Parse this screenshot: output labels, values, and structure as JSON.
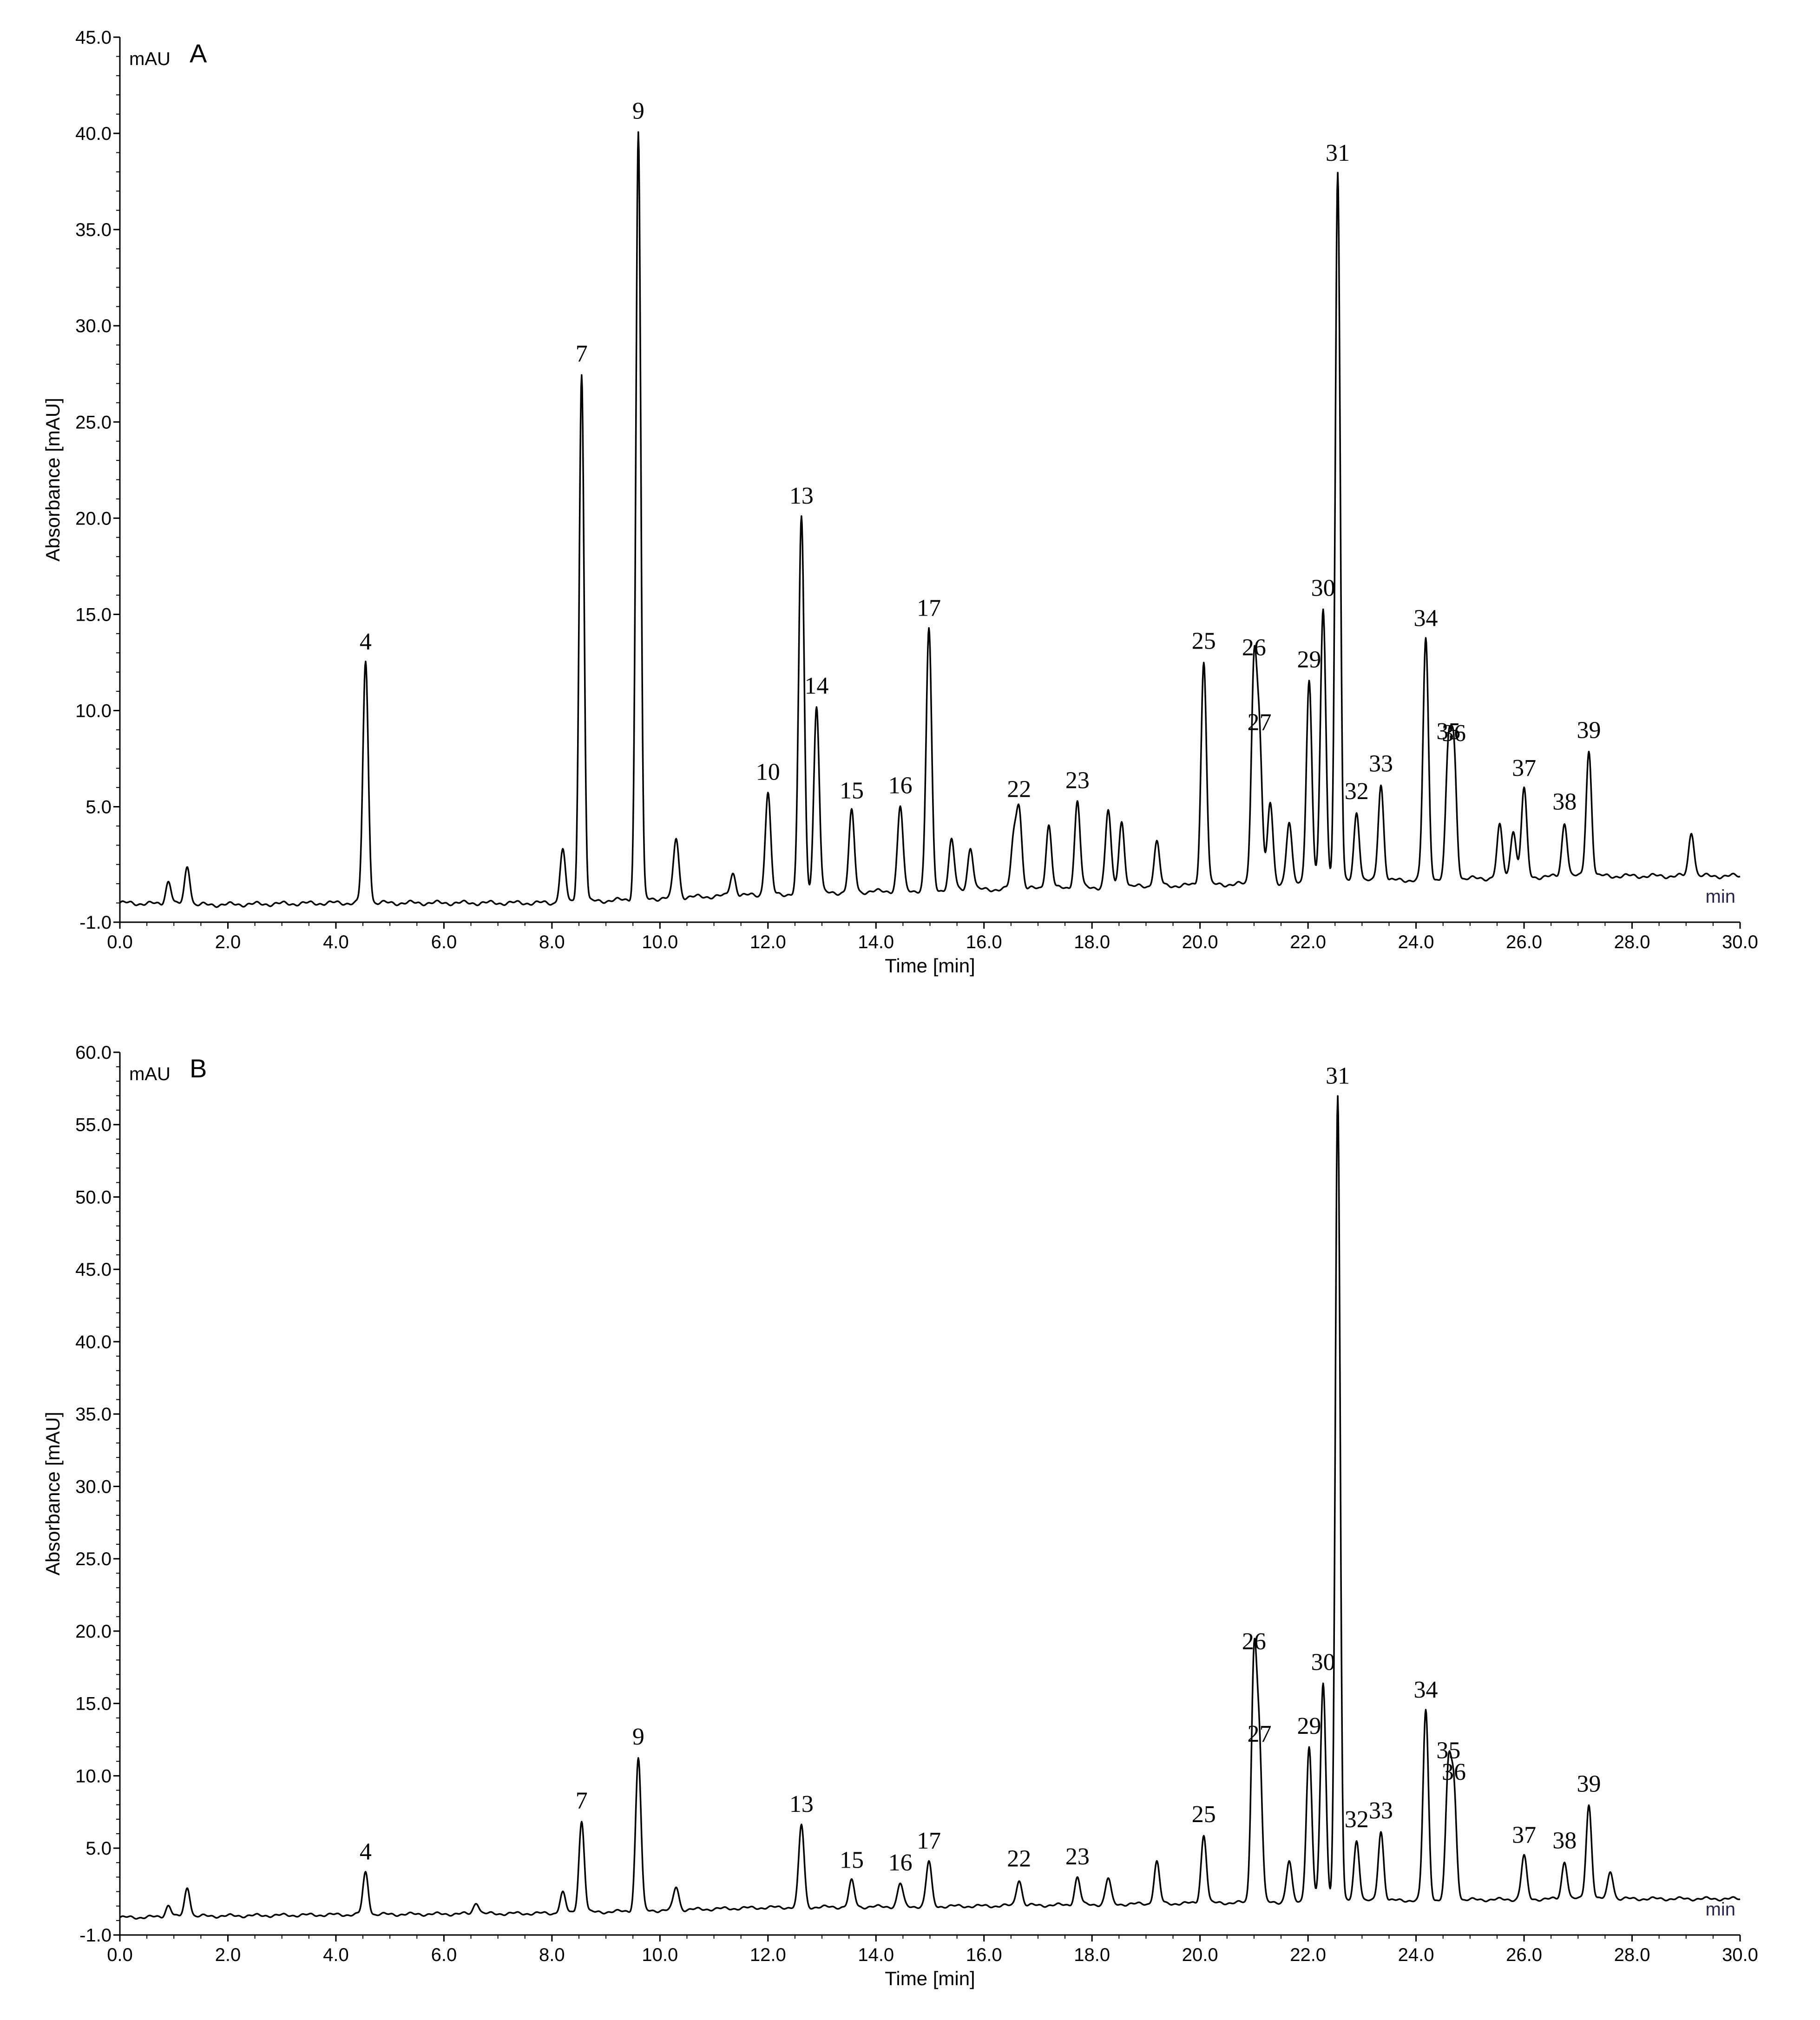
{
  "chart_data": [
    {
      "type": "line",
      "panel_label": "A",
      "unit_label": "mAU",
      "xlabel": "Time [min]",
      "ylabel": "Absorbance [mAU]",
      "x_end_label": "min",
      "xlim": [
        0,
        30
      ],
      "ylim": [
        -1,
        45
      ],
      "xticks": [
        0,
        2,
        4,
        6,
        8,
        10,
        12,
        14,
        16,
        18,
        20,
        22,
        24,
        26,
        28,
        30
      ],
      "xtick_labels": [
        "0.0",
        "2.0",
        "4.0",
        "6.0",
        "8.0",
        "10.0",
        "12.0",
        "14.0",
        "16.0",
        "18.0",
        "20.0",
        "22.0",
        "24.0",
        "26.0",
        "28.0",
        "30.0"
      ],
      "yticks": [
        -1,
        5,
        10,
        15,
        20,
        25,
        30,
        35,
        40,
        45
      ],
      "ytick_labels": [
        "-1.0",
        "5.0",
        "10.0",
        "15.0",
        "20.0",
        "25.0",
        "30.0",
        "35.0",
        "40.0",
        "45.0"
      ],
      "baseline": [
        [
          0,
          0.0
        ],
        [
          1.5,
          -0.1
        ],
        [
          4.0,
          0.0
        ],
        [
          8.0,
          0.0
        ],
        [
          10.5,
          0.3
        ],
        [
          14.0,
          0.6
        ],
        [
          18.0,
          0.8
        ],
        [
          21.0,
          1.0
        ],
        [
          24.0,
          1.2
        ],
        [
          27.0,
          1.4
        ],
        [
          30.0,
          1.4
        ]
      ],
      "peaks": [
        {
          "label": "",
          "time": 0.9,
          "height": 1.2
        },
        {
          "label": "",
          "time": 1.25,
          "height": 2.0
        },
        {
          "label": "4",
          "time": 4.55,
          "height": 12.5
        },
        {
          "label": "",
          "time": 8.2,
          "height": 2.7
        },
        {
          "label": "7",
          "time": 8.55,
          "height": 27.4
        },
        {
          "label": "9",
          "time": 9.6,
          "height": 39.9
        },
        {
          "label": "",
          "time": 10.3,
          "height": 3.1
        },
        {
          "label": "",
          "time": 11.35,
          "height": 1.2
        },
        {
          "label": "10",
          "time": 12.0,
          "height": 5.3
        },
        {
          "label": "13",
          "time": 12.62,
          "height": 19.6
        },
        {
          "label": "14",
          "time": 12.9,
          "height": 9.7
        },
        {
          "label": "15",
          "time": 13.55,
          "height": 4.2
        },
        {
          "label": "16",
          "time": 14.45,
          "height": 4.4
        },
        {
          "label": "17",
          "time": 14.98,
          "height": 13.6
        },
        {
          "label": "",
          "time": 15.4,
          "height": 2.6
        },
        {
          "label": "",
          "time": 15.75,
          "height": 2.2
        },
        {
          "label": "",
          "time": 16.55,
          "height": 2.5
        },
        {
          "label": "22",
          "time": 16.65,
          "height": 4.1
        },
        {
          "label": "",
          "time": 17.2,
          "height": 3.3
        },
        {
          "label": "23",
          "time": 17.73,
          "height": 4.5
        },
        {
          "label": "",
          "time": 18.3,
          "height": 4.0
        },
        {
          "label": "",
          "time": 18.55,
          "height": 3.4
        },
        {
          "label": "",
          "time": 19.2,
          "height": 2.3
        },
        {
          "label": "25",
          "time": 20.07,
          "height": 11.6
        },
        {
          "label": "26",
          "time": 21.0,
          "height": 11.2
        },
        {
          "label": "27",
          "time": 21.1,
          "height": 7.3
        },
        {
          "label": "",
          "time": 21.3,
          "height": 4.2
        },
        {
          "label": "",
          "time": 21.65,
          "height": 3.1
        },
        {
          "label": "29",
          "time": 22.02,
          "height": 10.5
        },
        {
          "label": "30",
          "time": 22.28,
          "height": 14.2
        },
        {
          "label": "31",
          "time": 22.55,
          "height": 36.8
        },
        {
          "label": "32",
          "time": 22.9,
          "height": 3.6
        },
        {
          "label": "33",
          "time": 23.35,
          "height": 5.0
        },
        {
          "label": "34",
          "time": 24.18,
          "height": 12.5
        },
        {
          "label": "35",
          "time": 24.6,
          "height": 6.6
        },
        {
          "label": "36",
          "time": 24.7,
          "height": 6.5
        },
        {
          "label": "",
          "time": 25.55,
          "height": 2.7
        },
        {
          "label": "",
          "time": 25.8,
          "height": 2.5
        },
        {
          "label": "37",
          "time": 26.0,
          "height": 4.6
        },
        {
          "label": "38",
          "time": 26.75,
          "height": 2.8
        },
        {
          "label": "39",
          "time": 27.2,
          "height": 6.5
        },
        {
          "label": "",
          "time": 29.1,
          "height": 2.3
        }
      ]
    },
    {
      "type": "line",
      "panel_label": "B",
      "unit_label": "mAU",
      "xlabel": "Time [min]",
      "ylabel": "Absorbance [mAU]",
      "x_end_label": "min",
      "xlim": [
        0,
        30
      ],
      "ylim": [
        -1,
        60
      ],
      "xticks": [
        0,
        2,
        4,
        6,
        8,
        10,
        12,
        14,
        16,
        18,
        20,
        22,
        24,
        26,
        28,
        30
      ],
      "xtick_labels": [
        "0.0",
        "2.0",
        "4.0",
        "6.0",
        "8.0",
        "10.0",
        "12.0",
        "14.0",
        "16.0",
        "18.0",
        "20.0",
        "22.0",
        "24.0",
        "26.0",
        "28.0",
        "30.0"
      ],
      "yticks": [
        -1,
        5,
        10,
        15,
        20,
        25,
        30,
        35,
        40,
        45,
        50,
        55,
        60
      ],
      "ytick_labels": [
        "-1.0",
        "5.0",
        "10.0",
        "15.0",
        "20.0",
        "25.0",
        "30.0",
        "35.0",
        "40.0",
        "45.0",
        "50.0",
        "55.0",
        "60.0"
      ],
      "baseline": [
        [
          0,
          0.2
        ],
        [
          1.5,
          0.3
        ],
        [
          4.0,
          0.4
        ],
        [
          8.0,
          0.5
        ],
        [
          12.0,
          0.9
        ],
        [
          16.0,
          1.0
        ],
        [
          20.0,
          1.2
        ],
        [
          24.0,
          1.4
        ],
        [
          27.0,
          1.5
        ],
        [
          30.0,
          1.5
        ]
      ],
      "peaks": [
        {
          "label": "",
          "time": 0.9,
          "height": 0.8
        },
        {
          "label": "",
          "time": 1.25,
          "height": 2.0
        },
        {
          "label": "4",
          "time": 4.55,
          "height": 2.9
        },
        {
          "label": "",
          "time": 6.6,
          "height": 0.8
        },
        {
          "label": "",
          "time": 8.2,
          "height": 1.4
        },
        {
          "label": "7",
          "time": 8.55,
          "height": 6.3
        },
        {
          "label": "9",
          "time": 9.6,
          "height": 10.6
        },
        {
          "label": "",
          "time": 10.3,
          "height": 1.6
        },
        {
          "label": "13",
          "time": 12.62,
          "height": 5.7
        },
        {
          "label": "15",
          "time": 13.55,
          "height": 1.8
        },
        {
          "label": "16",
          "time": 14.45,
          "height": 1.6
        },
        {
          "label": "17",
          "time": 14.98,
          "height": 3.1
        },
        {
          "label": "22",
          "time": 16.65,
          "height": 1.8
        },
        {
          "label": "23",
          "time": 17.73,
          "height": 1.9
        },
        {
          "label": "",
          "time": 18.3,
          "height": 1.8
        },
        {
          "label": "",
          "time": 19.2,
          "height": 2.9
        },
        {
          "label": "25",
          "time": 20.07,
          "height": 4.7
        },
        {
          "label": "26",
          "time": 21.0,
          "height": 16.6
        },
        {
          "label": "27",
          "time": 21.1,
          "height": 10.2
        },
        {
          "label": "",
          "time": 21.65,
          "height": 2.8
        },
        {
          "label": "29",
          "time": 22.02,
          "height": 10.7
        },
        {
          "label": "30",
          "time": 22.28,
          "height": 15.1
        },
        {
          "label": "31",
          "time": 22.55,
          "height": 55.6
        },
        {
          "label": "32",
          "time": 22.9,
          "height": 4.2
        },
        {
          "label": "33",
          "time": 23.35,
          "height": 4.8
        },
        {
          "label": "34",
          "time": 24.18,
          "height": 13.1
        },
        {
          "label": "35",
          "time": 24.6,
          "height": 8.9
        },
        {
          "label": "36",
          "time": 24.7,
          "height": 7.4
        },
        {
          "label": "37",
          "time": 26.0,
          "height": 3.0
        },
        {
          "label": "38",
          "time": 26.75,
          "height": 2.6
        },
        {
          "label": "39",
          "time": 27.2,
          "height": 6.5
        },
        {
          "label": "",
          "time": 27.6,
          "height": 1.9
        }
      ]
    }
  ]
}
